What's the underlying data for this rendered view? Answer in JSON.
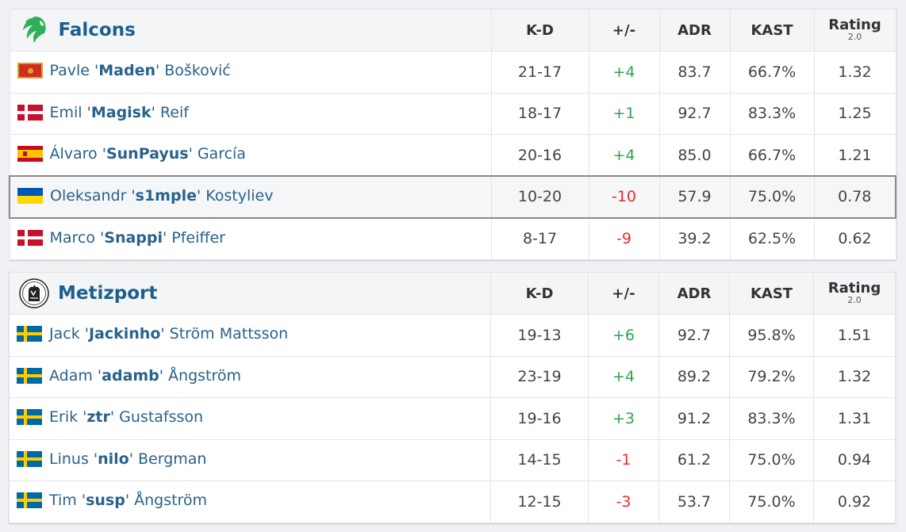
{
  "columns": {
    "kd": "K-D",
    "plus_minus": "+/-",
    "adr": "ADR",
    "kast": "KAST",
    "rating": "Rating",
    "rating_version": "2.0"
  },
  "colors": {
    "team_name": "#1a5f8e",
    "player_link": "#29628c",
    "positive": "#2ea44f",
    "negative": "#e03030",
    "highlight_border": "#8a8a8a"
  },
  "teams": [
    {
      "name": "Falcons",
      "logo_icon": "falcons-logo-icon",
      "players": [
        {
          "flag": "me",
          "first": "Pavle '",
          "nick": "Maden",
          "last": "' Bošković",
          "kd": "21-17",
          "pm": "+4",
          "adr": "83.7",
          "kast": "66.7%",
          "rating": "1.32"
        },
        {
          "flag": "dk",
          "first": "Emil '",
          "nick": "Magisk",
          "last": "' Reif",
          "kd": "18-17",
          "pm": "+1",
          "adr": "92.7",
          "kast": "83.3%",
          "rating": "1.25"
        },
        {
          "flag": "es",
          "first": "Álvaro '",
          "nick": "SunPayus",
          "last": "' García",
          "kd": "20-16",
          "pm": "+4",
          "adr": "85.0",
          "kast": "66.7%",
          "rating": "1.21"
        },
        {
          "flag": "ua",
          "first": "Oleksandr '",
          "nick": "s1mple",
          "last": "' Kostyliev",
          "kd": "10-20",
          "pm": "-10",
          "adr": "57.9",
          "kast": "75.0%",
          "rating": "0.78",
          "highlighted": true
        },
        {
          "flag": "dk",
          "first": "Marco '",
          "nick": "Snappi",
          "last": "' Pfeiffer",
          "kd": "8-17",
          "pm": "-9",
          "adr": "39.2",
          "kast": "62.5%",
          "rating": "0.62"
        }
      ]
    },
    {
      "name": "Metizport",
      "logo_icon": "metizport-logo-icon",
      "players": [
        {
          "flag": "se",
          "first": "Jack '",
          "nick": "Jackinho",
          "last": "' Ström Mattsson",
          "kd": "19-13",
          "pm": "+6",
          "adr": "92.7",
          "kast": "95.8%",
          "rating": "1.51"
        },
        {
          "flag": "se",
          "first": "Adam '",
          "nick": "adamb",
          "last": "' Ångström",
          "kd": "23-19",
          "pm": "+4",
          "adr": "89.2",
          "kast": "79.2%",
          "rating": "1.32"
        },
        {
          "flag": "se",
          "first": "Erik '",
          "nick": "ztr",
          "last": "' Gustafsson",
          "kd": "19-16",
          "pm": "+3",
          "adr": "91.2",
          "kast": "83.3%",
          "rating": "1.31"
        },
        {
          "flag": "se",
          "first": "Linus '",
          "nick": "nilo",
          "last": "' Bergman",
          "kd": "14-15",
          "pm": "-1",
          "adr": "61.2",
          "kast": "75.0%",
          "rating": "0.94"
        },
        {
          "flag": "se",
          "first": "Tim '",
          "nick": "susp",
          "last": "' Ångström",
          "kd": "12-15",
          "pm": "-3",
          "adr": "53.7",
          "kast": "75.0%",
          "rating": "0.92"
        }
      ]
    }
  ]
}
